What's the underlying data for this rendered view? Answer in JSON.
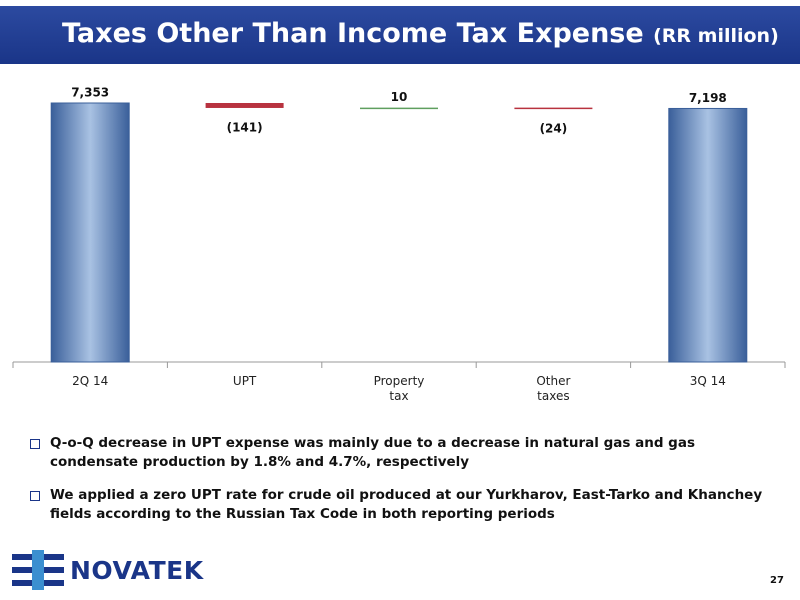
{
  "header": {
    "title": "Taxes Other Than Income Tax Expense",
    "unit": "(RR million)"
  },
  "chart_data": {
    "type": "waterfall",
    "categories": [
      "2Q 14",
      "UPT",
      "Property tax",
      "Other taxes",
      "3Q 14"
    ],
    "values": [
      7353,
      -141,
      10,
      -24,
      7198
    ],
    "value_labels": [
      "7,353",
      "(141)",
      "10",
      "(24)",
      "7,198"
    ],
    "total_color": "#5b80b8",
    "decrease_color": "#b8323f",
    "increase_color": "#5f9f5f"
  },
  "bullets": [
    "Q-o-Q decrease in UPT expense was mainly due to a decrease in natural gas and gas condensate production by 1.8% and 4.7%, respectively",
    "We applied a zero UPT rate for crude oil produced at our Yurkharov, East-Tarko and Khanchey fields according to the Russian Tax Code in both reporting periods"
  ],
  "logo": "NOVATEK",
  "page_number": "27"
}
